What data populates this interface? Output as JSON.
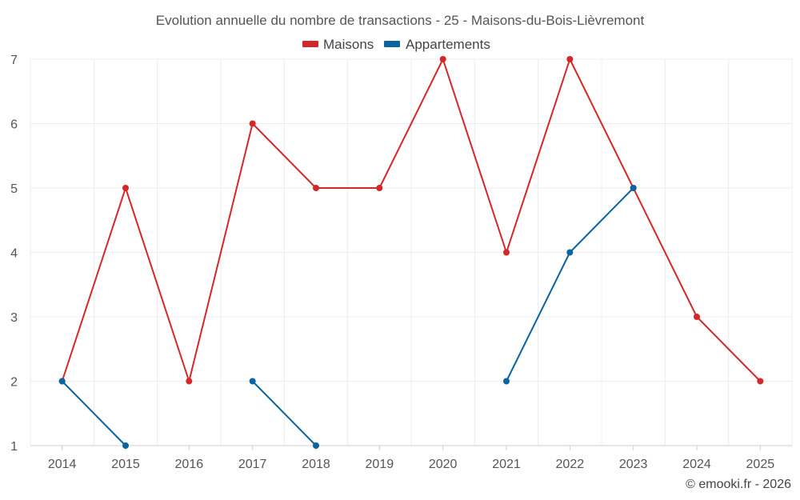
{
  "chart_data": {
    "type": "line",
    "title": "Evolution annuelle du nombre de transactions - 25 - Maisons-du-Bois-Lièvremont",
    "categories": [
      "2014",
      "2015",
      "2016",
      "2017",
      "2018",
      "2019",
      "2020",
      "2021",
      "2022",
      "2023",
      "2024",
      "2025"
    ],
    "ylim": [
      1,
      7
    ],
    "yticks": [
      1,
      2,
      3,
      4,
      5,
      6,
      7
    ],
    "grid": true,
    "legend_position": "top-center",
    "series": [
      {
        "name": "Maisons",
        "color": "#d62728",
        "values": [
          2,
          5,
          2,
          6,
          5,
          5,
          7,
          4,
          7,
          5,
          3,
          2
        ]
      },
      {
        "name": "Appartements",
        "color": "#0a64a0",
        "values": [
          2,
          1,
          null,
          2,
          1,
          null,
          null,
          2,
          4,
          5,
          null,
          null
        ]
      }
    ]
  },
  "credit": "© emooki.fr - 2026"
}
